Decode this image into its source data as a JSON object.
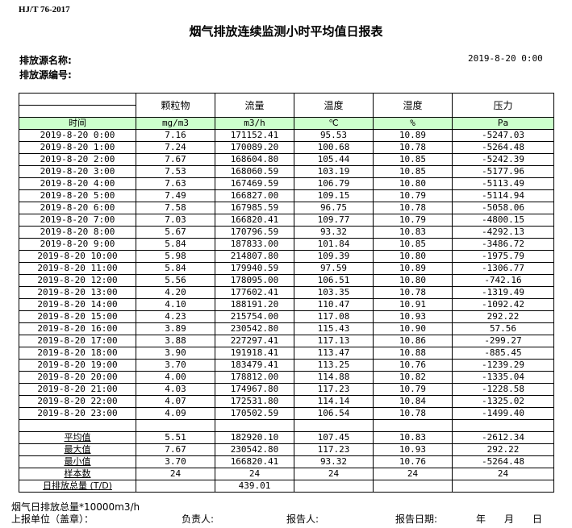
{
  "header": {
    "standard": "HJ/T 76-2017",
    "title": "烟气排放连续监测小时平均值日报表",
    "source_name_label": "排放源名称:",
    "source_id_label": "排放源编号:",
    "report_time": "2019-8-20 0:00"
  },
  "table": {
    "columns": [
      "颗粒物",
      "流量",
      "温度",
      "湿度",
      "压力"
    ],
    "time_label": "时间",
    "units": [
      "mg/m3",
      "m3/h",
      "℃",
      "%",
      "Pa"
    ],
    "rows": [
      [
        "2019-8-20 0:00",
        "7.16",
        "171152.41",
        "95.53",
        "10.89",
        "-5247.03"
      ],
      [
        "2019-8-20 1:00",
        "7.24",
        "170089.20",
        "100.68",
        "10.78",
        "-5264.48"
      ],
      [
        "2019-8-20 2:00",
        "7.67",
        "168604.80",
        "105.44",
        "10.85",
        "-5242.39"
      ],
      [
        "2019-8-20 3:00",
        "7.53",
        "168060.59",
        "103.19",
        "10.85",
        "-5177.96"
      ],
      [
        "2019-8-20 4:00",
        "7.63",
        "167469.59",
        "106.79",
        "10.80",
        "-5113.49"
      ],
      [
        "2019-8-20 5:00",
        "7.49",
        "166827.00",
        "109.15",
        "10.79",
        "-5114.94"
      ],
      [
        "2019-8-20 6:00",
        "7.58",
        "167985.59",
        "96.75",
        "10.78",
        "-5058.06"
      ],
      [
        "2019-8-20 7:00",
        "7.03",
        "166820.41",
        "109.77",
        "10.79",
        "-4800.15"
      ],
      [
        "2019-8-20 8:00",
        "5.67",
        "170796.59",
        "93.32",
        "10.83",
        "-4292.13"
      ],
      [
        "2019-8-20 9:00",
        "5.84",
        "187833.00",
        "101.84",
        "10.85",
        "-3486.72"
      ],
      [
        "2019-8-20 10:00",
        "5.98",
        "214807.80",
        "109.39",
        "10.80",
        "-1975.79"
      ],
      [
        "2019-8-20 11:00",
        "5.84",
        "179940.59",
        "97.59",
        "10.89",
        "-1306.77"
      ],
      [
        "2019-8-20 12:00",
        "5.56",
        "178095.00",
        "106.51",
        "10.80",
        "-742.16"
      ],
      [
        "2019-8-20 13:00",
        "4.20",
        "177602.41",
        "103.35",
        "10.78",
        "-1319.49"
      ],
      [
        "2019-8-20 14:00",
        "4.10",
        "188191.20",
        "110.47",
        "10.91",
        "-1092.42"
      ],
      [
        "2019-8-20 15:00",
        "4.23",
        "215754.00",
        "117.08",
        "10.93",
        "292.22"
      ],
      [
        "2019-8-20 16:00",
        "3.89",
        "230542.80",
        "115.43",
        "10.90",
        "57.56"
      ],
      [
        "2019-8-20 17:00",
        "3.88",
        "227297.41",
        "117.13",
        "10.86",
        "-299.27"
      ],
      [
        "2019-8-20 18:00",
        "3.90",
        "191918.41",
        "113.47",
        "10.88",
        "-885.45"
      ],
      [
        "2019-8-20 19:00",
        "3.70",
        "183479.41",
        "113.25",
        "10.76",
        "-1239.29"
      ],
      [
        "2019-8-20 20:00",
        "4.00",
        "178812.00",
        "114.88",
        "10.82",
        "-1335.04"
      ],
      [
        "2019-8-20 21:00",
        "4.03",
        "174967.80",
        "117.23",
        "10.79",
        "-1228.58"
      ],
      [
        "2019-8-20 22:00",
        "4.07",
        "172531.80",
        "114.14",
        "10.84",
        "-1325.02"
      ],
      [
        "2019-8-20 23:00",
        "4.09",
        "170502.59",
        "106.54",
        "10.78",
        "-1499.40"
      ]
    ],
    "stats": [
      [
        "平均值",
        "5.51",
        "182920.10",
        "107.45",
        "10.83",
        "-2612.34"
      ],
      [
        "最大值",
        "7.67",
        "230542.80",
        "117.23",
        "10.93",
        "292.22"
      ],
      [
        "最小值",
        "3.70",
        "166820.41",
        "93.32",
        "10.76",
        "-5264.48"
      ],
      [
        "样本数",
        "24",
        "24",
        "24",
        "24",
        "24"
      ],
      [
        "日排放总量 (T/D)",
        "",
        "439.01",
        "",
        "",
        ""
      ]
    ]
  },
  "footer": {
    "note": "烟气日排放总量*10000m3/h",
    "unit_label": "上报单位（盖章）：",
    "manager_label": "负责人:",
    "reporter_label": "报告人:",
    "date_label": "报告日期:",
    "year": "年",
    "month": "月",
    "day": "日"
  }
}
